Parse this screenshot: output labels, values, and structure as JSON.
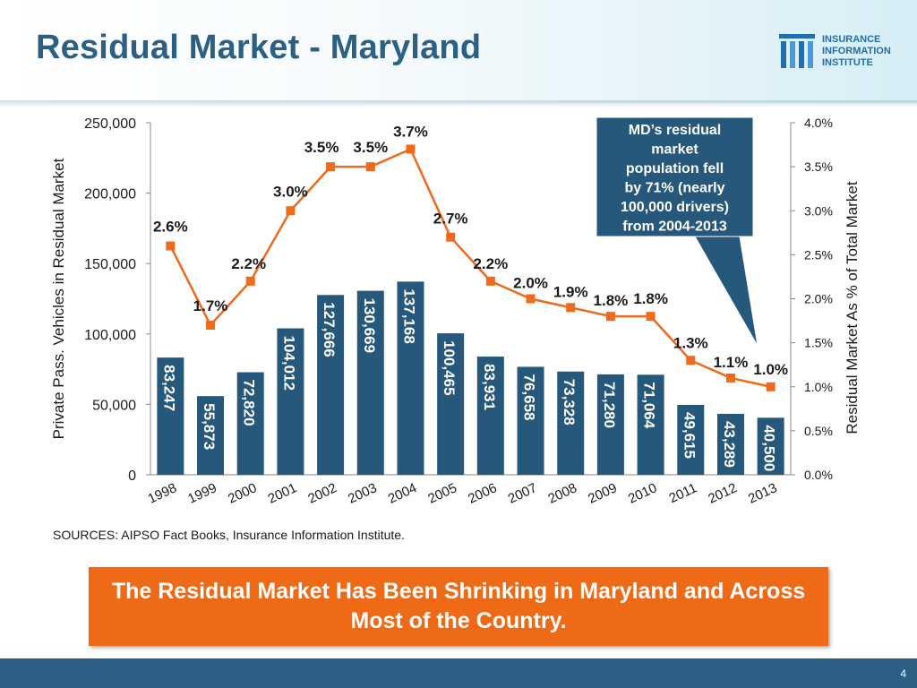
{
  "header": {
    "title": "Residual Market - Maryland",
    "logo_lines": [
      "INSURANCE",
      "INFORMATION",
      "INSTITUTE"
    ],
    "title_color": "#2b5f84"
  },
  "chart_data": {
    "type": "bar+line",
    "categories": [
      "1998",
      "1999",
      "2000",
      "2001",
      "2002",
      "2003",
      "2004",
      "2005",
      "2006",
      "2007",
      "2008",
      "2009",
      "2010",
      "2011",
      "2012",
      "2013"
    ],
    "series": [
      {
        "name": "",
        "type": "bar",
        "axis": "left",
        "color": "#25587b",
        "values": [
          83247,
          55873,
          72820,
          104012,
          127666,
          130669,
          137168,
          100465,
          83931,
          76658,
          73328,
          71280,
          71064,
          49615,
          43289,
          40500
        ],
        "labels": [
          "83,247",
          "55,873",
          "72,820",
          "104,012",
          "127,666",
          "130,669",
          "137,168",
          "100,465",
          "83,931",
          "76,658",
          "73,328",
          "71,280",
          "71,064",
          "49,615",
          "43,289",
          "40,500"
        ]
      },
      {
        "name": "",
        "type": "line",
        "axis": "right",
        "color": "#ee6a1c",
        "values": [
          2.6,
          1.7,
          2.2,
          3.0,
          3.5,
          3.5,
          3.7,
          2.7,
          2.2,
          2.0,
          1.9,
          1.8,
          1.8,
          1.3,
          1.1,
          1.0
        ],
        "labels": [
          "2.6%",
          "1.7%",
          "2.2%",
          "3.0%",
          "3.5%",
          "3.5%",
          "3.7%",
          "2.7%",
          "2.2%",
          "2.0%",
          "1.9%",
          "1.8%",
          "1.8%",
          "1.3%",
          "1.1%",
          "1.0%"
        ]
      }
    ],
    "ylabel_left": "Private Pass. Vehicles in Residual Market",
    "ylabel_right": "Residual Market As % of Total Market",
    "ylim_left": [
      0,
      250000
    ],
    "ylim_right": [
      0,
      4.0
    ],
    "yticks_left": [
      "0",
      "50,000",
      "100,000",
      "150,000",
      "200,000",
      "250,000"
    ],
    "yticks_right": [
      "0.0%",
      "0.5%",
      "1.0%",
      "1.5%",
      "2.0%",
      "2.5%",
      "3.0%",
      "3.5%",
      "4.0%"
    ],
    "grid": false,
    "callout": {
      "lines": [
        "MD’s residual",
        "market",
        "population fell",
        "by 71% (nearly",
        "100,000 drivers)",
        "from 2004-2013"
      ],
      "color": "#25587b"
    }
  },
  "sources": "SOURCES: AIPSO Fact Books, Insurance Information Institute.",
  "banner": {
    "text": "The Residual Market Has Been Shrinking in Maryland and Across Most of the Country.",
    "color": "#ef6a16"
  },
  "footer": {
    "page_number": "4",
    "color": "#2c5f83"
  }
}
